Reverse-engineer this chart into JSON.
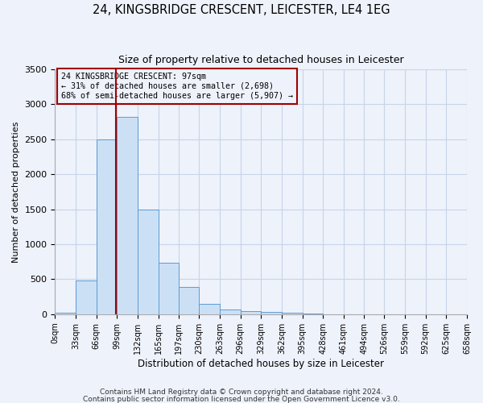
{
  "title": "24, KINGSBRIDGE CRESCENT, LEICESTER, LE4 1EG",
  "subtitle": "Size of property relative to detached houses in Leicester",
  "xlabel": "Distribution of detached houses by size in Leicester",
  "ylabel": "Number of detached properties",
  "bin_edges": [
    0,
    33,
    66,
    99,
    132,
    165,
    197,
    230,
    263,
    296,
    329,
    362,
    395,
    428,
    461,
    494,
    526,
    559,
    592,
    625,
    658
  ],
  "bin_labels": [
    "0sqm",
    "33sqm",
    "66sqm",
    "99sqm",
    "132sqm",
    "165sqm",
    "197sqm",
    "230sqm",
    "263sqm",
    "296sqm",
    "329sqm",
    "362sqm",
    "395sqm",
    "428sqm",
    "461sqm",
    "494sqm",
    "526sqm",
    "559sqm",
    "592sqm",
    "625sqm",
    "658sqm"
  ],
  "counts": [
    20,
    480,
    2500,
    2820,
    1500,
    730,
    390,
    145,
    70,
    50,
    35,
    25,
    10,
    0,
    0,
    0,
    0,
    0,
    0,
    0
  ],
  "bar_color": "#cce0f5",
  "bar_edge_color": "#5b9bd5",
  "vline_x": 97,
  "vline_color": "#a00000",
  "ylim": [
    0,
    3500
  ],
  "yticks": [
    0,
    500,
    1000,
    1500,
    2000,
    2500,
    3000,
    3500
  ],
  "annotation_title": "24 KINGSBRIDGE CRESCENT: 97sqm",
  "annotation_line1": "← 31% of detached houses are smaller (2,698)",
  "annotation_line2": "68% of semi-detached houses are larger (5,907) →",
  "annotation_box_edge": "#a00000",
  "footnote1": "Contains HM Land Registry data © Crown copyright and database right 2024.",
  "footnote2": "Contains public sector information licensed under the Open Government Licence v3.0.",
  "bg_color": "#eef2fb",
  "grid_color": "#c8d4e8"
}
